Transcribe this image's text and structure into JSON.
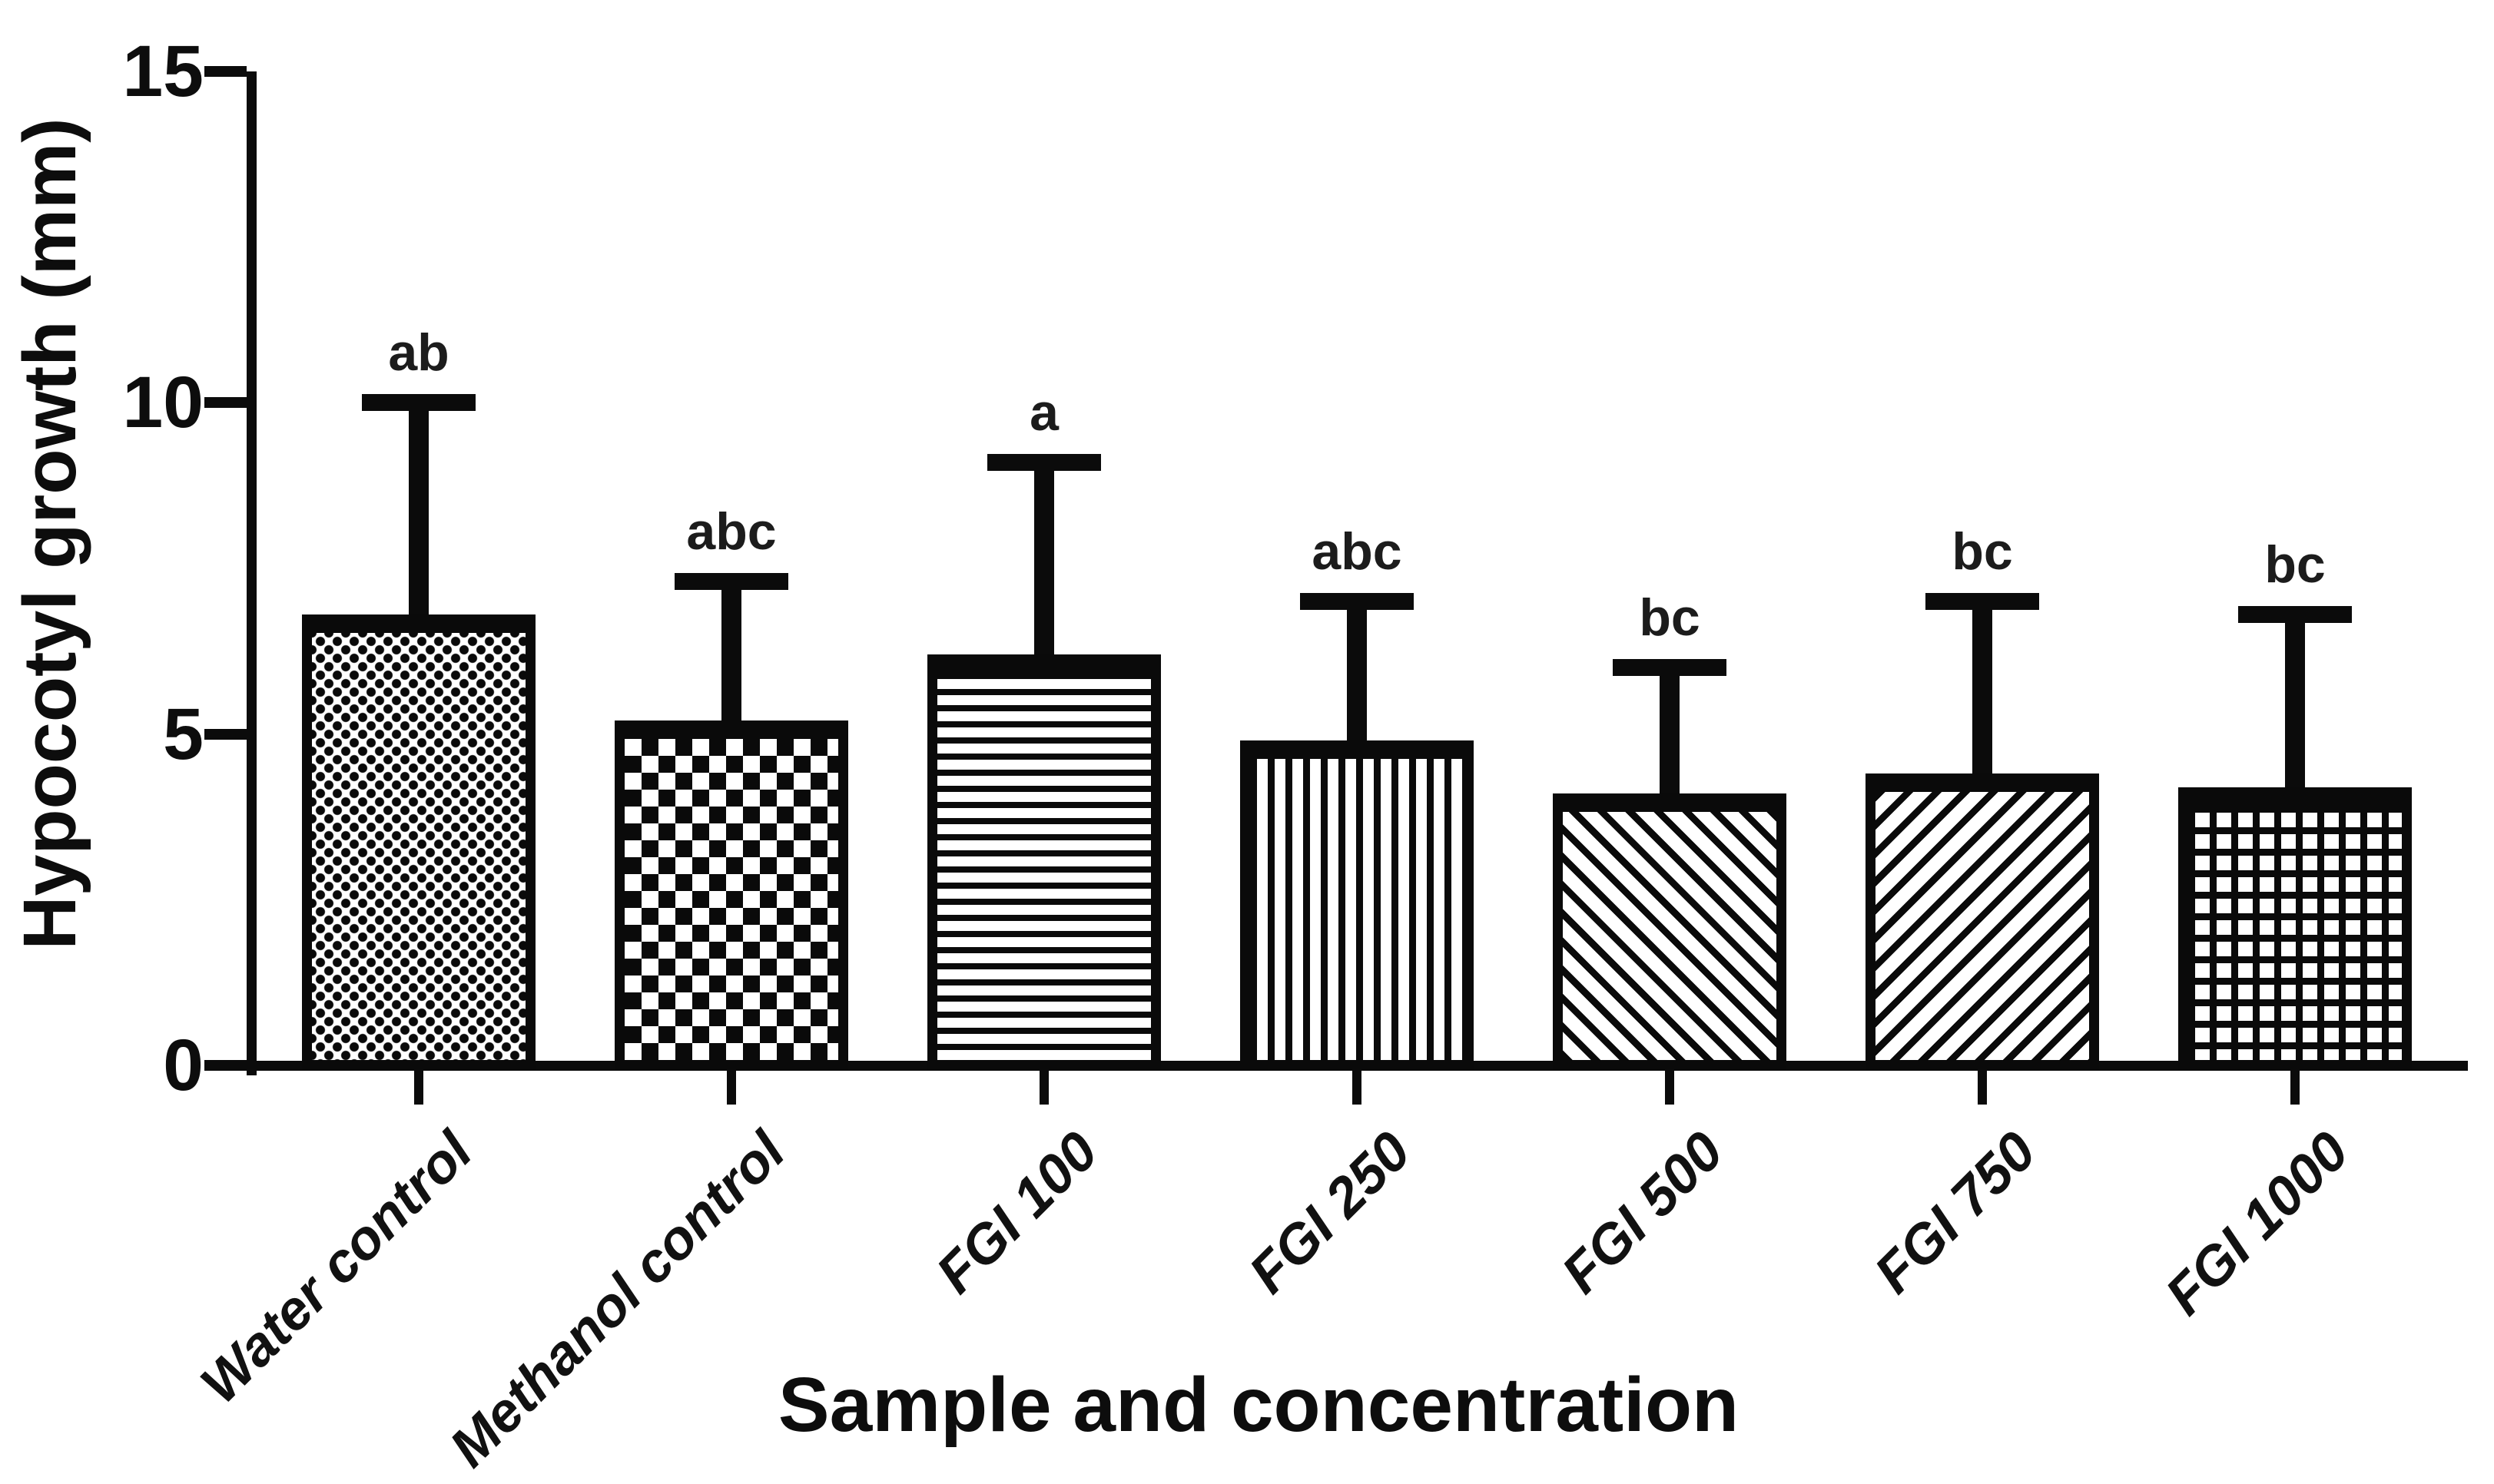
{
  "figure": {
    "background_color": "#ffffff",
    "ink_color": "#0b0b0b"
  },
  "chart_data": {
    "type": "bar",
    "title": "",
    "xlabel": "Sample and concentration",
    "ylabel": "Hypocotyl growth (mm)",
    "ylim": [
      0,
      15
    ],
    "yticks": [
      0,
      5,
      10,
      15
    ],
    "grid": false,
    "legend": false,
    "error_bars": "plus_sd_with_caps",
    "categories": [
      "Water control",
      "Methanol control",
      "FGI 100",
      "FGI 250",
      "FGI 500",
      "FGI 750",
      "FGI 1000"
    ],
    "series": [
      {
        "name": "Hypocotyl growth (mm)",
        "values": [
          6.8,
          5.2,
          6.2,
          4.9,
          4.1,
          4.4,
          4.2
        ],
        "errors_plus": [
          3.2,
          2.1,
          2.9,
          2.1,
          1.9,
          2.6,
          2.6
        ]
      }
    ],
    "significance_labels": [
      "ab",
      "abc",
      "a",
      "abc",
      "bc",
      "bc",
      "bc"
    ],
    "fill_patterns": [
      "fine-checker",
      "coarse-checker",
      "horizontal-stripes",
      "vertical-stripes",
      "diagonal-stripes-forward",
      "diagonal-stripes-backward",
      "grid-crosshatch"
    ],
    "bar_outline_color": "#0a0a0a"
  }
}
